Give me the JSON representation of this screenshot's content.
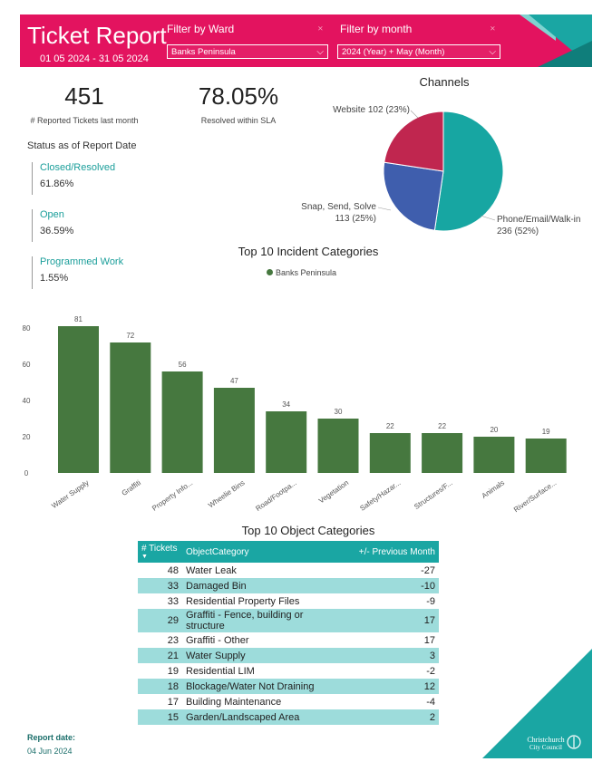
{
  "header": {
    "title": "Ticket Report",
    "date_range": "01 05 2024 - 31 05 2024",
    "filter_ward_label": "Filter by Ward",
    "filter_ward_value": "Banks Peninsula",
    "filter_month_label": "Filter by month",
    "filter_month_value": "2024 (Year) + May (Month)"
  },
  "kpis": {
    "reported": {
      "value": "451",
      "label": "# Reported Tickets last month"
    },
    "sla": {
      "value": "78.05%",
      "label": "Resolved within SLA"
    }
  },
  "status": {
    "heading": "Status as of Report Date",
    "items": [
      {
        "name": "Closed/Resolved",
        "value": "61.86%"
      },
      {
        "name": "Open",
        "value": "36.59%"
      },
      {
        "name": "Programmed Work",
        "value": "1.55%"
      }
    ]
  },
  "colors": {
    "brand_pink": "#e3135f",
    "teal": "#1aa6a3",
    "bar_green": "#46783f",
    "pie_web": "#c0264f",
    "pie_sss": "#3f5ead",
    "pie_phone": "#17a6a2"
  },
  "chart_data": [
    {
      "type": "pie",
      "title": "Channels",
      "slices": [
        {
          "name": "Phone/Email/Walk-in",
          "value": 236,
          "percent": 52,
          "label_line1": "Phone/Email/Walk-in",
          "label_line2": "236 (52%)"
        },
        {
          "name": "Snap, Send, Solve",
          "value": 113,
          "percent": 25,
          "label_line1": "Snap, Send, Solve",
          "label_line2": "113 (25%)"
        },
        {
          "name": "Website",
          "value": 102,
          "percent": 23,
          "label_line1": "Website 102 (23%)",
          "label_line2": ""
        }
      ]
    },
    {
      "type": "bar",
      "title": "Top 10 Incident Categories",
      "series": [
        {
          "name": "Banks Peninsula",
          "values": [
            81,
            72,
            56,
            47,
            34,
            30,
            22,
            22,
            20,
            19
          ]
        }
      ],
      "categories": [
        "Water Supply",
        "Graffiti",
        "Property Info...",
        "Wheelie Bins",
        "Road/Footpa...",
        "Vegetation",
        "Safety/Hazar...",
        "Structures/F...",
        "Animals",
        "River/Surface..."
      ],
      "ylim": [
        0,
        90
      ],
      "yticks": [
        "0",
        "20",
        "40",
        "60",
        "80"
      ]
    }
  ],
  "table": {
    "title": "Top 10 Object Categories",
    "headers": [
      "# Tickets",
      "ObjectCategory",
      "+/- Previous Month"
    ],
    "rows": [
      {
        "tickets": "48",
        "category": "Water Leak",
        "delta": "-27"
      },
      {
        "tickets": "33",
        "category": "Damaged Bin",
        "delta": "-10"
      },
      {
        "tickets": "33",
        "category": "Residential Property Files",
        "delta": "-9"
      },
      {
        "tickets": "29",
        "category": "Graffiti - Fence, building or structure",
        "delta": "17"
      },
      {
        "tickets": "23",
        "category": "Graffiti - Other",
        "delta": "17"
      },
      {
        "tickets": "21",
        "category": "Water Supply",
        "delta": "3"
      },
      {
        "tickets": "19",
        "category": "Residential LIM",
        "delta": "-2"
      },
      {
        "tickets": "18",
        "category": "Blockage/Water Not Draining",
        "delta": "12"
      },
      {
        "tickets": "17",
        "category": "Building Maintenance",
        "delta": "-4"
      },
      {
        "tickets": "15",
        "category": "Garden/Landscaped Area",
        "delta": "2"
      }
    ]
  },
  "footer": {
    "report_date_label": "Report date:",
    "report_date_value": "04 Jun 2024",
    "logo_line1": "Christchurch",
    "logo_line2": "City Council"
  }
}
